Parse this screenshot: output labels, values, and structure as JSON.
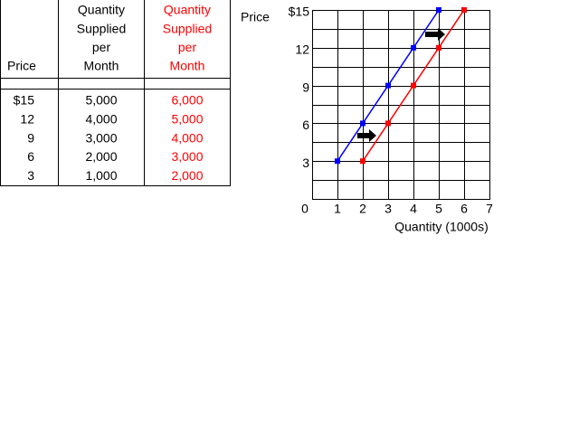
{
  "table": {
    "headers": [
      [
        "Price"
      ],
      [
        "Quantity",
        "Supplied",
        "per",
        "Month"
      ],
      [
        "Quantity",
        "Supplied",
        "per",
        "Month"
      ]
    ],
    "header_colors": [
      "#000000",
      "#000000",
      "#ff0000"
    ],
    "rows": [
      [
        "$15",
        "5,000",
        "6,000"
      ],
      [
        "12",
        "4,000",
        "5,000"
      ],
      [
        "9",
        "3,000",
        "4,000"
      ],
      [
        "6",
        "2,000",
        "3,000"
      ],
      [
        "3",
        "1,000",
        "2,000"
      ]
    ]
  },
  "chart_data": {
    "type": "line",
    "y_label": "Price",
    "x_label": "Quantity  (1000s)",
    "series": [
      {
        "color": "#0000ff",
        "x": [
          1,
          2,
          3,
          4,
          5
        ],
        "values": [
          3,
          6,
          9,
          12,
          15
        ]
      },
      {
        "color": "#ff0000",
        "x": [
          2,
          3,
          4,
          5,
          6
        ],
        "values": [
          3,
          6,
          9,
          12,
          15
        ]
      }
    ],
    "xlim": [
      0,
      7
    ],
    "ylim": [
      0,
      15
    ],
    "xticks": [
      0,
      1,
      2,
      3,
      4,
      5,
      6,
      7
    ],
    "yticks": [
      3,
      6,
      9,
      12,
      {
        "value": 15,
        "label": "$15"
      }
    ],
    "grid": true
  }
}
